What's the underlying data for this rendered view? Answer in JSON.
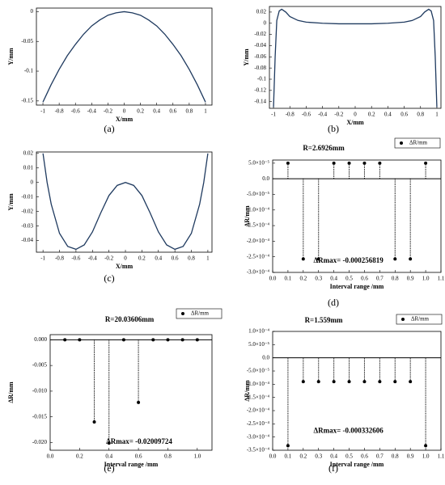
{
  "chart_data": [
    {
      "type": "line",
      "caption": "(a)",
      "x_label": "X/mm",
      "y_label": "Y/mm",
      "color": "#1f3a5f",
      "x": [
        -1,
        -0.9,
        -0.8,
        -0.7,
        -0.6,
        -0.5,
        -0.4,
        -0.3,
        -0.2,
        -0.1,
        0,
        0.1,
        0.2,
        0.3,
        0.4,
        0.5,
        0.6,
        0.7,
        0.8,
        0.9,
        1
      ],
      "values": [
        -0.152,
        -0.123,
        -0.097,
        -0.074,
        -0.055,
        -0.038,
        -0.024,
        -0.014,
        -0.006,
        -0.002,
        0,
        -0.002,
        -0.006,
        -0.014,
        -0.024,
        -0.038,
        -0.055,
        -0.074,
        -0.097,
        -0.123,
        -0.152
      ],
      "xlim": [
        -1.08,
        1.08
      ],
      "xticks": [
        -1,
        -0.8,
        -0.6,
        -0.4,
        -0.2,
        0,
        0.2,
        0.4,
        0.6,
        0.8,
        1
      ],
      "ylim": [
        -0.157,
        0.006
      ],
      "yticks": [
        0,
        -0.05,
        -0.1,
        -0.15
      ]
    },
    {
      "type": "line",
      "caption": "(b)",
      "x_label": "X/mm",
      "y_label": "Y/mm",
      "color": "#1f3a5f",
      "x": [
        -1,
        -0.98,
        -0.96,
        -0.93,
        -0.9,
        -0.85,
        -0.8,
        -0.7,
        -0.6,
        -0.4,
        -0.2,
        0,
        0.2,
        0.4,
        0.6,
        0.7,
        0.8,
        0.85,
        0.9,
        0.93,
        0.96,
        0.98,
        1
      ],
      "values": [
        -0.15,
        -0.06,
        0.005,
        0.022,
        0.025,
        0.02,
        0.012,
        0.005,
        0.002,
        0,
        -0.001,
        -0.001,
        -0.001,
        0,
        0.002,
        0.005,
        0.012,
        0.02,
        0.025,
        0.022,
        0.005,
        -0.06,
        -0.15
      ],
      "xlim": [
        -1.05,
        1.05
      ],
      "xticks": [
        -1,
        -0.8,
        -0.6,
        -0.4,
        -0.2,
        0,
        0.2,
        0.4,
        0.6,
        0.8,
        1
      ],
      "ylim": [
        -0.152,
        0.03
      ],
      "yticks": [
        0.02,
        0,
        -0.02,
        -0.04,
        -0.06,
        -0.08,
        -0.1,
        -0.12,
        -0.14
      ]
    },
    {
      "type": "line",
      "caption": "(c)",
      "x_label": "X/mm",
      "y_label": "Y/mm",
      "color": "#1f3a5f",
      "x": [
        -1,
        -0.95,
        -0.9,
        -0.8,
        -0.7,
        -0.6,
        -0.5,
        -0.4,
        -0.3,
        -0.2,
        -0.1,
        0,
        0.1,
        0.2,
        0.3,
        0.4,
        0.5,
        0.6,
        0.7,
        0.8,
        0.9,
        0.95,
        1
      ],
      "values": [
        0.02,
        0,
        -0.015,
        -0.035,
        -0.044,
        -0.046,
        -0.043,
        -0.034,
        -0.021,
        -0.009,
        -0.002,
        0,
        -0.002,
        -0.009,
        -0.021,
        -0.034,
        -0.043,
        -0.046,
        -0.044,
        -0.035,
        -0.015,
        0,
        0.02
      ],
      "xlim": [
        -1.08,
        1.05
      ],
      "xticks": [
        -1,
        -0.8,
        -0.6,
        -0.4,
        -0.2,
        0,
        0.2,
        0.4,
        0.6,
        0.8,
        1
      ],
      "ylim": [
        -0.048,
        0.021
      ],
      "yticks": [
        0.02,
        0.01,
        0,
        -0.01,
        -0.02,
        -0.03,
        -0.04
      ]
    },
    {
      "type": "stem",
      "caption": "(d)",
      "title": "R=2.6926mm",
      "legend": "ΔR/mm",
      "x_label": "Interval range /mm",
      "y_label": "ΔR/mm",
      "annotation": "ΔRmax= -0.000256819",
      "color": "#000000",
      "x": [
        0.1,
        0.2,
        0.3,
        0.4,
        0.5,
        0.6,
        0.7,
        0.8,
        0.9,
        1
      ],
      "values": [
        5e-05,
        -0.000256819,
        -0.000256819,
        5e-05,
        5e-05,
        5e-05,
        5e-05,
        -0.000256819,
        -0.000256819,
        5e-05
      ],
      "xlim": [
        0,
        1.1
      ],
      "xticks": [
        {
          "value": 0,
          "label": "0.0"
        },
        0.1,
        0.2,
        0.3,
        0.4,
        0.5,
        0.6,
        0.7,
        0.8,
        0.9,
        {
          "value": 1,
          "label": "1.0"
        },
        1.1
      ],
      "ylim": [
        -0.0003,
        6e-05
      ],
      "yticks": [
        {
          "value": 5e-05,
          "label": "5.0×10⁻⁵"
        },
        {
          "value": 0,
          "label": "0.0"
        },
        {
          "value": -5e-05,
          "label": "-5.0×10⁻⁵"
        },
        {
          "value": -0.0001,
          "label": "-1.0×10⁻⁴"
        },
        {
          "value": -0.00015,
          "label": "-1.5×10⁻⁴"
        },
        {
          "value": -0.0002,
          "label": "-2.0×10⁻⁴"
        },
        {
          "value": -0.00025,
          "label": "-2.5×10⁻⁴"
        },
        {
          "value": -0.0003,
          "label": "-3.0×10⁻⁴"
        }
      ]
    },
    {
      "type": "stem",
      "caption": "(e)",
      "title": "R=20.03606mm",
      "legend": "ΔR/mm",
      "x_label": "Interval range /mm",
      "y_label": "ΔR/mm",
      "annotation": "ΔRmax= -0.02009724",
      "color": "#000000",
      "x": [
        0.1,
        0.2,
        0.3,
        0.4,
        0.5,
        0.6,
        0.7,
        0.8,
        0.9,
        1
      ],
      "values": [
        0,
        0,
        -0.016,
        -0.02009724,
        0,
        -0.0122,
        0,
        0,
        0,
        0
      ],
      "xlim": [
        0,
        1.1
      ],
      "xticks": [
        {
          "value": 0,
          "label": "0.0"
        },
        0.2,
        0.4,
        0.6,
        0.8,
        {
          "value": 1,
          "label": "1.0"
        }
      ],
      "ylim": [
        -0.0215,
        0.001
      ],
      "yticks": [
        {
          "value": 0,
          "label": "0.000"
        },
        {
          "value": -0.005,
          "label": "-0.005"
        },
        {
          "value": -0.01,
          "label": "-0.010"
        },
        {
          "value": -0.015,
          "label": "-0.015"
        },
        {
          "value": -0.02,
          "label": "-0.020"
        }
      ]
    },
    {
      "type": "stem",
      "caption": "(f)",
      "title": "R=1.559mm",
      "legend": "ΔR/mm",
      "x_label": "Interval range /mm",
      "y_label": "ΔR/mm",
      "annotation": "ΔRmax= -0.000332606",
      "color": "#000000",
      "x": [
        0.1,
        0.2,
        0.3,
        0.4,
        0.5,
        0.6,
        0.7,
        0.8,
        0.9,
        1
      ],
      "values": [
        -0.000332606,
        -9e-05,
        -9e-05,
        -9e-05,
        -9e-05,
        -9e-05,
        -9e-05,
        -9e-05,
        -9e-05,
        -0.000332606
      ],
      "xlim": [
        0,
        1.1
      ],
      "xticks": [
        {
          "value": 0,
          "label": "0.0"
        },
        0.1,
        0.2,
        0.3,
        0.4,
        0.5,
        0.6,
        0.7,
        0.8,
        0.9,
        {
          "value": 1,
          "label": "1.0"
        },
        1.1
      ],
      "ylim": [
        -0.00035,
        0.0001
      ],
      "yticks": [
        {
          "value": 0.0001,
          "label": "1.0×10⁻⁴"
        },
        {
          "value": 5e-05,
          "label": "5.0×10⁻⁵"
        },
        {
          "value": 0,
          "label": "0.0"
        },
        {
          "value": -5e-05,
          "label": "-5.0×10⁻⁵"
        },
        {
          "value": -0.0001,
          "label": "-1.0×10⁻⁴"
        },
        {
          "value": -0.00015,
          "label": "-1.5×10⁻⁴"
        },
        {
          "value": -0.0002,
          "label": "-2.0×10⁻⁴"
        },
        {
          "value": -0.00025,
          "label": "-2.5×10⁻⁴"
        },
        {
          "value": -0.0003,
          "label": "-3.0×10⁻⁴"
        },
        {
          "value": -0.00035,
          "label": "-3.5×10⁻⁴"
        }
      ]
    }
  ]
}
